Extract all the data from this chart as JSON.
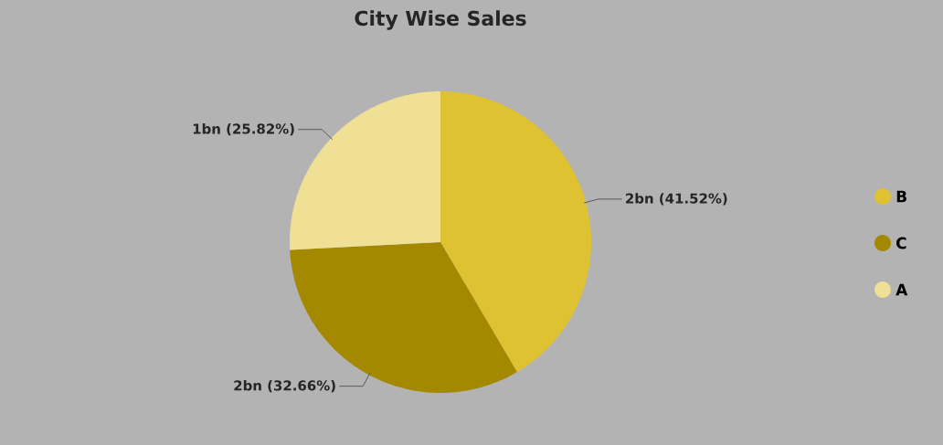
{
  "chart_data": {
    "type": "pie",
    "title": "City Wise Sales",
    "categories": [
      "B",
      "C",
      "A"
    ],
    "values": [
      41.52,
      32.66,
      25.82
    ],
    "value_labels": [
      "2bn (41.52%)",
      "2bn (32.66%)",
      "1bn (25.82%)"
    ],
    "colors": [
      "#dfc232",
      "#a48900",
      "#efe096"
    ],
    "legend": "right"
  }
}
